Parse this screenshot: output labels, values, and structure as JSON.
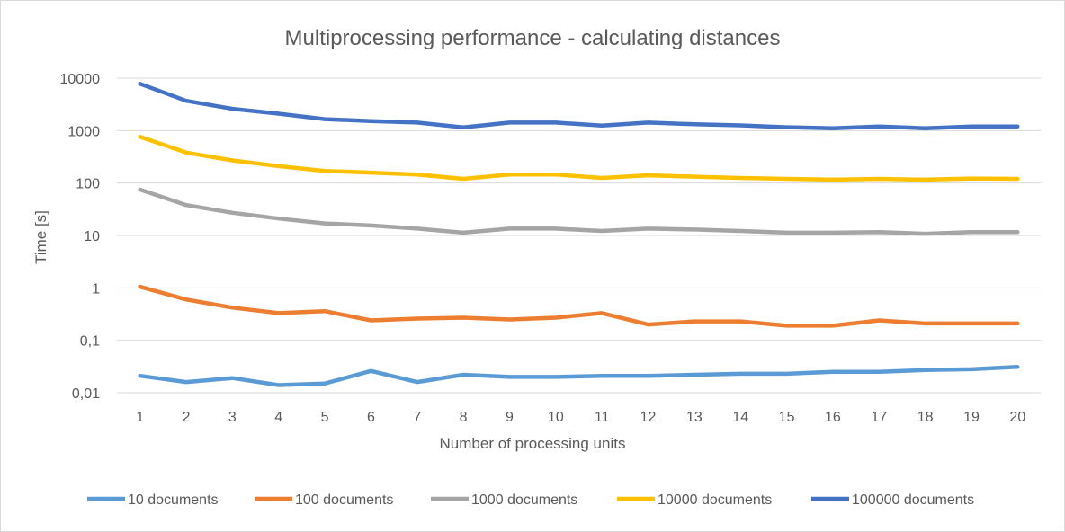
{
  "chart_data": {
    "type": "line",
    "title": "Multiprocessing performance - calculating distances",
    "xlabel": "Number of processing units",
    "ylabel": "Time [s]",
    "yscale": "log",
    "ylim": [
      0.01,
      10000
    ],
    "ytick_labels": [
      "10000",
      "1000",
      "100",
      "10",
      "1",
      "0,1",
      "0,01"
    ],
    "ytick_values": [
      10000,
      1000,
      100,
      10,
      1,
      0.1,
      0.01
    ],
    "categories": [
      "1",
      "2",
      "3",
      "4",
      "5",
      "6",
      "7",
      "8",
      "9",
      "10",
      "11",
      "12",
      "13",
      "14",
      "15",
      "16",
      "17",
      "18",
      "19",
      "20"
    ],
    "grid": true,
    "legend_position": "bottom",
    "series": [
      {
        "name": "10 documents",
        "color": "#5b9bd5",
        "values": [
          0.021,
          0.016,
          0.019,
          0.014,
          0.015,
          0.026,
          0.016,
          0.022,
          0.02,
          0.02,
          0.021,
          0.021,
          0.022,
          0.023,
          0.023,
          0.025,
          0.025,
          0.027,
          0.028,
          0.031
        ]
      },
      {
        "name": "100 documents",
        "color": "#ed7d31",
        "values": [
          1.05,
          0.6,
          0.42,
          0.33,
          0.36,
          0.24,
          0.26,
          0.27,
          0.25,
          0.27,
          0.33,
          0.2,
          0.23,
          0.23,
          0.19,
          0.19,
          0.24,
          0.21,
          0.21,
          0.21
        ]
      },
      {
        "name": "1000 documents",
        "color": "#a5a5a5",
        "values": [
          75,
          38,
          27,
          21,
          17,
          15.5,
          13.5,
          11.3,
          13.5,
          13.5,
          12.2,
          13.5,
          13,
          12.2,
          11.3,
          11.3,
          11.6,
          10.8,
          11.6,
          11.6
        ]
      },
      {
        "name": "10000 documents",
        "color": "#ffc000",
        "values": [
          760,
          380,
          270,
          210,
          170,
          158,
          145,
          120,
          145,
          145,
          125,
          140,
          132,
          125,
          120,
          116,
          120,
          116,
          122,
          120
        ]
      },
      {
        "name": "100000 documents",
        "color": "#4472c4",
        "values": [
          7800,
          3700,
          2600,
          2100,
          1650,
          1520,
          1420,
          1150,
          1420,
          1420,
          1250,
          1420,
          1320,
          1260,
          1160,
          1110,
          1200,
          1110,
          1200,
          1200
        ]
      }
    ]
  }
}
